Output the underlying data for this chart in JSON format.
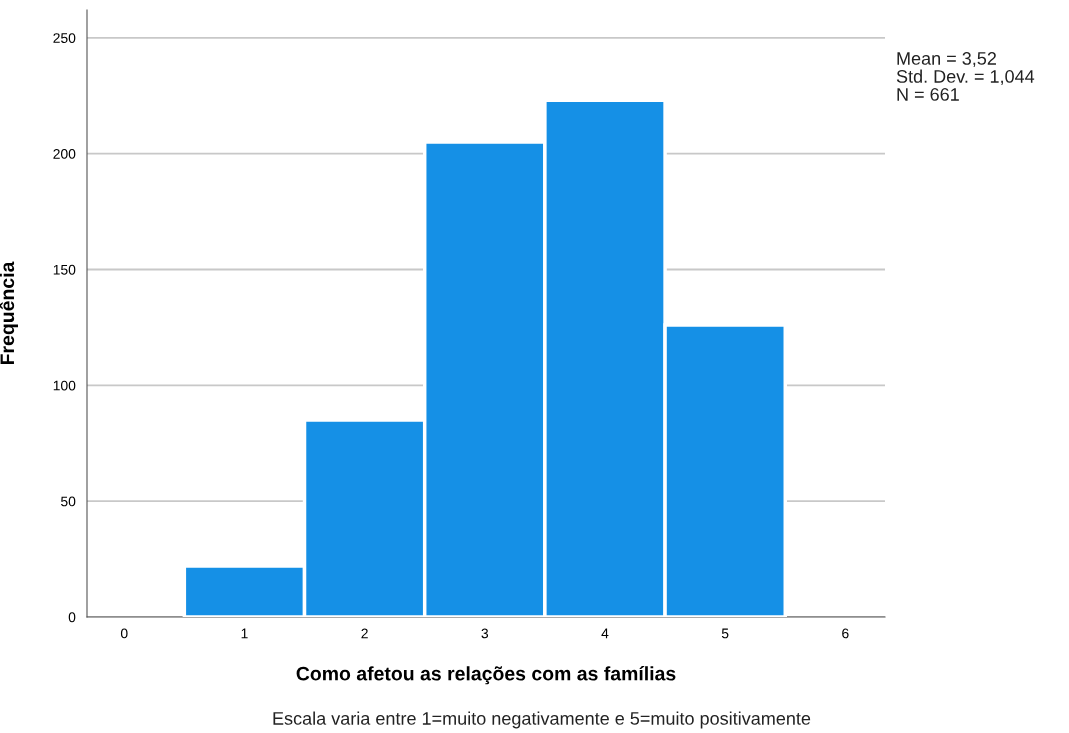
{
  "chart_data": {
    "type": "histogram",
    "xlabel": "Como afetou as relações com as famílias",
    "ylabel": "Frequência",
    "bins": [
      0.5,
      1.5,
      2.5,
      3.5,
      4.5,
      5.5
    ],
    "values": [
      22,
      85,
      205,
      223,
      126
    ],
    "color": "#1590e6",
    "xlim": [
      -0.31,
      6.33
    ],
    "xticks": [
      0,
      1,
      2,
      3,
      4,
      5,
      6
    ],
    "ylim": [
      0,
      262
    ],
    "yticks": [
      0,
      50,
      100,
      150,
      200,
      250
    ],
    "grid": "y",
    "annotations": [
      "Mean = 3,52",
      "Std. Dev. = 1,044",
      "N = 661",
      "Escala varia entre 1=muito negativamente e 5=muito positivamente"
    ]
  }
}
